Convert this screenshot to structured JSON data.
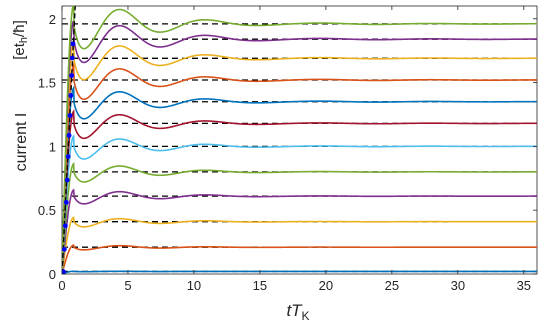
{
  "chart_data": {
    "type": "line",
    "title": "",
    "xlabel": "tT_K",
    "xlabel_main": "tT",
    "xlabel_sub": "K",
    "ylabel": "current I",
    "ylabel_unit": "[et_h/ħ]",
    "ylabel_unit_prefix": "[et",
    "ylabel_unit_sub": "h",
    "ylabel_unit_suffix": "/ħ]",
    "xlim": [
      0,
      36
    ],
    "ylim": [
      0,
      2.1
    ],
    "x_ticks": [
      0,
      5,
      10,
      15,
      20,
      25,
      30,
      35
    ],
    "y_ticks": [
      0,
      0.5,
      1,
      1.5,
      2
    ],
    "x_tick_labels": [
      "0",
      "5",
      "10",
      "15",
      "20",
      "25",
      "30",
      "35"
    ],
    "y_tick_labels": [
      "0",
      "0.5",
      "1",
      "1.5",
      "2"
    ],
    "grid": false,
    "legend": "none",
    "reference_lines": {
      "style": "dashed",
      "color": "#000000",
      "x_start": 0,
      "values": [
        0.02,
        0.21,
        0.41,
        0.61,
        0.8,
        1.0,
        1.18,
        1.35,
        1.52,
        1.69,
        1.84,
        1.96
      ]
    },
    "series": [
      {
        "steady": 0.02,
        "color": "#0072BD"
      },
      {
        "steady": 0.21,
        "color": "#D95319"
      },
      {
        "steady": 0.41,
        "color": "#EDB120"
      },
      {
        "steady": 0.61,
        "color": "#7E2F8E"
      },
      {
        "steady": 0.8,
        "color": "#77AC30"
      },
      {
        "steady": 1.0,
        "color": "#4DBEEE"
      },
      {
        "steady": 1.18,
        "color": "#A2142F"
      },
      {
        "steady": 1.35,
        "color": "#0072BD"
      },
      {
        "steady": 1.52,
        "color": "#D95319"
      },
      {
        "steady": 1.69,
        "color": "#EDB120"
      },
      {
        "steady": 1.84,
        "color": "#7E2F8E"
      },
      {
        "steady": 1.96,
        "color": "#77AC30"
      }
    ],
    "diagonal_line": {
      "x": [
        0,
        1
      ],
      "y": [
        0,
        2.1
      ],
      "style": "dashed",
      "color": "#000000"
    },
    "markers": {
      "color": "#0000ff",
      "x": 0.4
    }
  }
}
